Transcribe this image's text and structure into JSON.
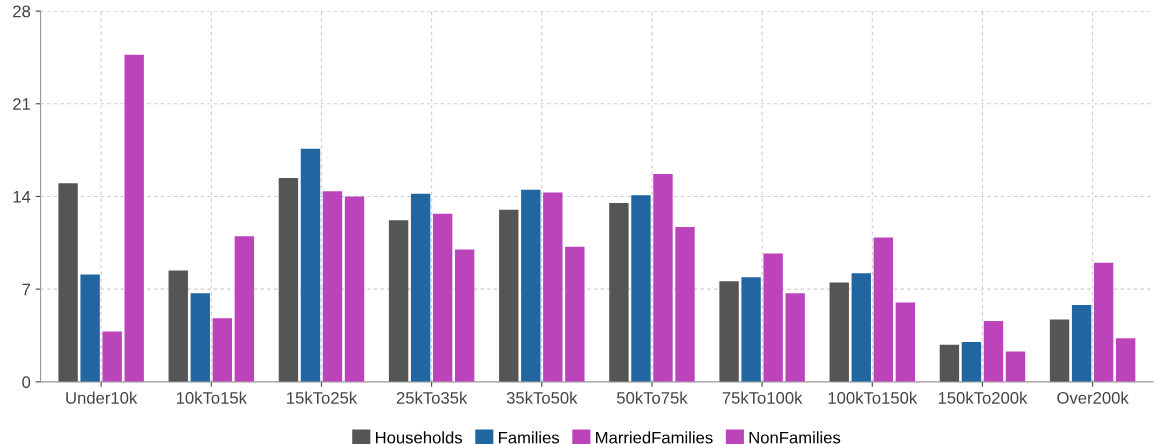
{
  "chart_data": {
    "type": "bar",
    "categories": [
      "Under10k",
      "10kTo15k",
      "15kTo25k",
      "25kTo35k",
      "35kTo50k",
      "50kTo75k",
      "75kTo100k",
      "100kTo150k",
      "150kTo200k",
      "Over200k"
    ],
    "series": [
      {
        "name": "Households",
        "color": "#555555",
        "values": [
          15.0,
          8.4,
          15.4,
          12.2,
          13.0,
          13.5,
          7.6,
          7.5,
          2.8,
          4.7
        ]
      },
      {
        "name": "Families",
        "color": "#2166a0",
        "values": [
          8.1,
          6.7,
          17.6,
          14.2,
          14.5,
          14.1,
          7.9,
          8.2,
          3.0,
          5.8
        ]
      },
      {
        "name": "MarriedFamilies",
        "color": "#bb44bb",
        "values": [
          3.8,
          4.8,
          14.4,
          12.7,
          14.3,
          15.7,
          9.7,
          10.9,
          4.6,
          9.0
        ]
      },
      {
        "name": "NonFamilies",
        "color": "#bb44bb",
        "values": [
          24.7,
          11.0,
          14.0,
          10.0,
          10.2,
          11.7,
          6.7,
          6.0,
          2.3,
          3.3
        ]
      }
    ],
    "ylim": [
      0,
      28
    ],
    "yticks": [
      0,
      7,
      14,
      21,
      28
    ],
    "grid": true,
    "legend": "bottom"
  }
}
